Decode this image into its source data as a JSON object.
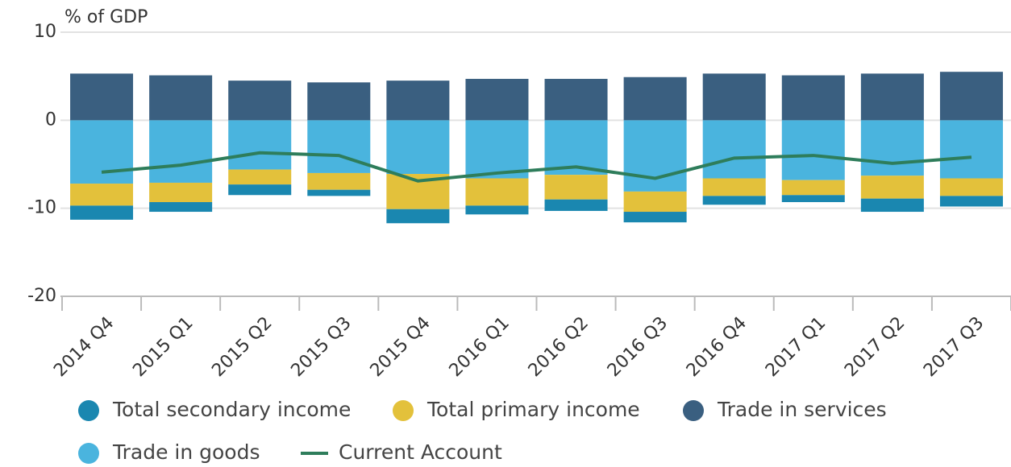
{
  "chart_data": {
    "type": "bar",
    "stacked": true,
    "y_axis_label": "% of GDP",
    "categories": [
      "2014 Q4",
      "2015 Q1",
      "2015 Q2",
      "2015 Q3",
      "2015 Q4",
      "2016 Q1",
      "2016 Q2",
      "2016 Q3",
      "2016 Q4",
      "2017 Q1",
      "2017 Q2",
      "2017 Q3"
    ],
    "series": [
      {
        "name": "Total secondary income",
        "color": "#1a87b0",
        "values": [
          -1.6,
          -1.1,
          -1.2,
          -0.7,
          -1.6,
          -1.0,
          -1.3,
          -1.2,
          -1.0,
          -0.8,
          -1.5,
          -1.2
        ]
      },
      {
        "name": "Total primary income",
        "color": "#e3c13b",
        "values": [
          -2.5,
          -2.2,
          -1.7,
          -1.9,
          -4.0,
          -3.1,
          -2.8,
          -2.3,
          -2.0,
          -1.7,
          -2.6,
          -2.0
        ]
      },
      {
        "name": "Trade in services",
        "color": "#3a5f80",
        "values": [
          5.3,
          5.1,
          4.5,
          4.3,
          4.5,
          4.7,
          4.7,
          4.9,
          5.3,
          5.1,
          5.3,
          5.5
        ]
      },
      {
        "name": "Trade in goods",
        "color": "#4ab4de",
        "values": [
          -7.2,
          -7.1,
          -5.6,
          -6.0,
          -6.1,
          -6.6,
          -6.2,
          -8.1,
          -6.6,
          -6.8,
          -6.3,
          -6.6
        ]
      },
      {
        "name": "Current Account",
        "color": "#2e7d5b",
        "type": "line",
        "values": [
          -5.9,
          -5.1,
          -3.7,
          -4.0,
          -6.9,
          -6.0,
          -5.3,
          -6.6,
          -4.3,
          -4.0,
          -4.9,
          -4.2
        ]
      }
    ],
    "ylim": [
      -20,
      10
    ],
    "yticks": [
      -20,
      -10,
      0,
      10
    ],
    "grid": true
  }
}
